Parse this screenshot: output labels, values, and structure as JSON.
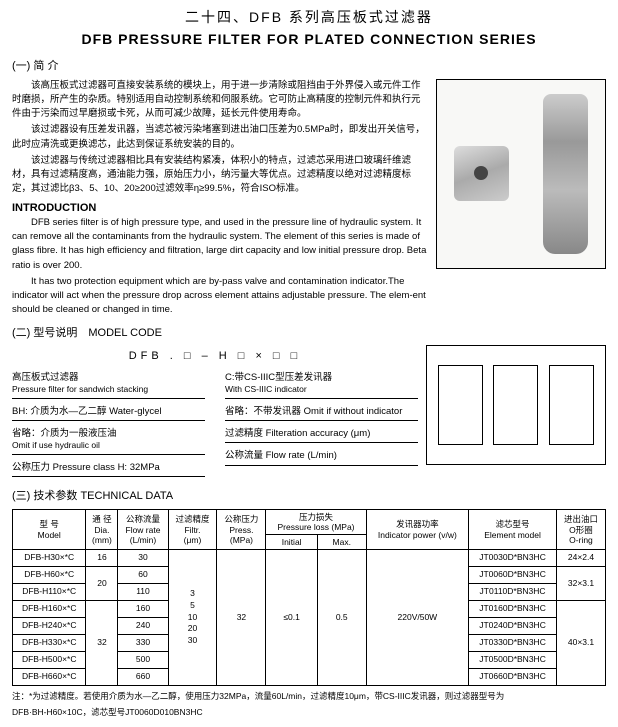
{
  "title_cn": "二十四、DFB 系列高压板式过滤器",
  "title_en": "DFB PRESSURE FILTER FOR PLATED CONNECTION SERIES",
  "sec1_head": "(一) 简 介",
  "intro_cn": [
    "该高压板式过滤器可直接安装系统的模块上，用于进一步清除或阻挡由于外界侵入或元件工作时磨损，所产生的杂质。特别适用自动控制系统和伺服系统。它可防止高精度的控制元件和执行元件由于污染而过早磨损或卡死，从而可减少故障，延长元件使用寿命。",
    "该过滤器设有压差发讯器，当滤芯被污染堵塞到进出油口压差为0.5MPa时，即发出开关信号，此时应清洗或更换滤芯，此达到保证系统安装的目的。",
    "该过滤器与传统过滤器相比具有安装结构紧凑，体积小的特点，过滤芯采用进口玻璃纤维滤材，具有过滤精度高，通油能力强，原始压力小，纳污量大等优点。过滤精度以绝对过滤精度标定，其过滤比β3、5、10、20≥200过滤效率η≥99.5%，符合ISO标准。"
  ],
  "intro_en_head": "INTRODUCTION",
  "intro_en": [
    "DFB series filter is of high pressure type, and used in the pressure line of hydraulic system. It can remove all the contaminants from the hydraulic system. The element of this series is made of glass fibre. It has high efficiency and filtration, large dirt capacity and low initial pressure drop. Beta ratio is over 200.",
    "It has two protection equipment which are by-pass valve and contamination indicator.The indicator will act when the pressure drop across element attains adjustable pressure. The elem-ent should be cleaned or changed in time."
  ],
  "sec2_head": "(二) 型号说明　MODEL CODE",
  "formula": "DFB . □ – H □ × □ □",
  "code_left": [
    {
      "cn": "高压板式过滤器",
      "en": "Pressure filter for sandwich stacking"
    },
    {
      "cn": "BH: 介质为水—乙二醇 Water-glycel",
      "en": ""
    },
    {
      "cn": "省略：介质为一般液压油",
      "en": "Omit if use hydraulic oil"
    },
    {
      "cn": "公称压力 Pressure class  H: 32MPa",
      "en": ""
    }
  ],
  "code_right": [
    {
      "cn": "C:带CS-IIIC型压差发讯器",
      "en": "With CS-IIIC indicator"
    },
    {
      "cn": "省略：不带发讯器 Omit if without indicator",
      "en": ""
    },
    {
      "cn": "过滤精度  Filteration accuracy (μm)",
      "en": ""
    },
    {
      "cn": "公称流量 Flow rate (L/min)",
      "en": ""
    }
  ],
  "sec3_head": "(三) 技术参数 TECHNICAL DATA",
  "table": {
    "headers": {
      "model": "型 号\nModel",
      "dia": "通 径\nDia.\n(mm)",
      "flow": "公称流量\nFlow rate\n(L/min)",
      "filt": "过滤精度\nFiltr.\n(μm)",
      "press": "公称压力\nPress.\n(MPa)",
      "ploss": "压力损失\nPressure loss (MPa)",
      "ploss_init": "Initial",
      "ploss_max": "Max.",
      "indpow": "发讯器功率\nIndicator power (v/w)",
      "elem": "滤芯型号\nElement model",
      "oring": "进出油口\nO形圈\nO-ring"
    },
    "filt_vals": "3\n5\n10\n20\n30",
    "press_val": "32",
    "ploss_init_val": "≤0.1",
    "ploss_max_val": "0.5",
    "indpow_val": "220V/50W",
    "rows": [
      {
        "model": "DFB-H30×*C",
        "dia": "16",
        "flow": "30",
        "elem": "JT0030D*BN3HC",
        "oring": "24×2.4"
      },
      {
        "model": "DFB-H60×*C",
        "dia": "20",
        "flow": "60",
        "elem": "JT0060D*BN3HC",
        "oring": "32×3.1"
      },
      {
        "model": "DFB-H110×*C",
        "dia": "20",
        "flow": "110",
        "elem": "JT0110D*BN3HC",
        "oring": "32×3.1"
      },
      {
        "model": "DFB-H160×*C",
        "dia": "32",
        "flow": "160",
        "elem": "JT0160D*BN3HC",
        "oring": "40×3.1"
      },
      {
        "model": "DFB-H240×*C",
        "dia": "32",
        "flow": "240",
        "elem": "JT0240D*BN3HC",
        "oring": "40×3.1"
      },
      {
        "model": "DFB-H330×*C",
        "dia": "32",
        "flow": "330",
        "elem": "JT0330D*BN3HC",
        "oring": "40×3.1"
      },
      {
        "model": "DFB-H500×*C",
        "dia": "32",
        "flow": "500",
        "elem": "JT0500D*BN3HC",
        "oring": "40×3.1"
      },
      {
        "model": "DFB-H660×*C",
        "dia": "32",
        "flow": "660",
        "elem": "JT0660D*BN3HC",
        "oring": "40×3.1"
      }
    ]
  },
  "note1": "注：*为过滤精度。若使用介质为水—乙二醇，使用压力32MPa，流量60L/min，过滤精度10μm，带CS-IIIC发讯器，则过滤器型号为",
  "note2": "DFB·BH-H60×10C，滤芯型号JT0060D010BN3HC"
}
